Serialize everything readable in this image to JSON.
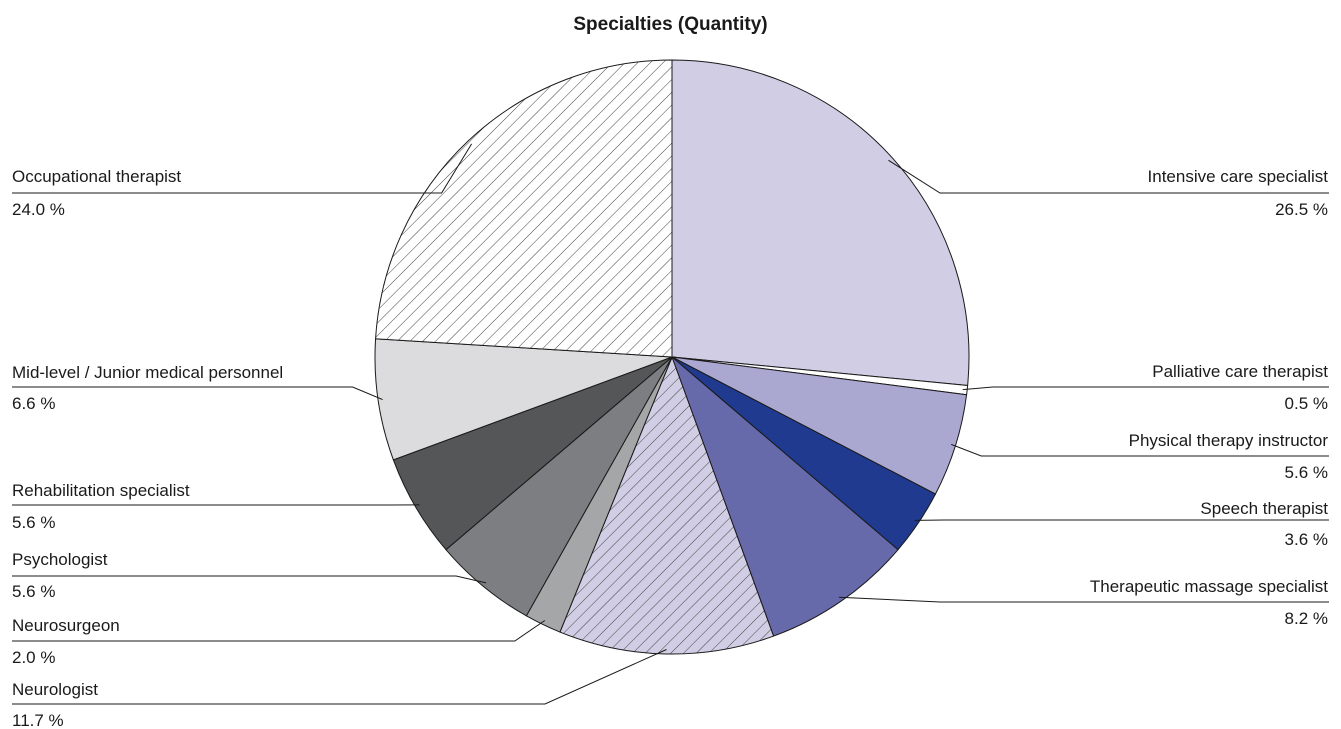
{
  "chart_data": {
    "type": "pie",
    "title": "Specialties (Quantity)",
    "slices": [
      {
        "label": "Intensive care specialist",
        "value": 26.5,
        "value_label": "26.5 %",
        "color": "#d0cde4",
        "pattern": "solid"
      },
      {
        "label": "Palliative care therapist",
        "value": 0.5,
        "value_label": "0.5 %",
        "color": "#ffffff",
        "pattern": "solid"
      },
      {
        "label": "Physical therapy instructor",
        "value": 5.6,
        "value_label": "5.6 %",
        "color": "#aaa8d0",
        "pattern": "solid"
      },
      {
        "label": "Speech therapist",
        "value": 3.6,
        "value_label": "3.6 %",
        "color": "#1f3a8f",
        "pattern": "solid"
      },
      {
        "label": "Therapeutic massage specialist",
        "value": 8.2,
        "value_label": "8.2 %",
        "color": "#676aaa",
        "pattern": "solid"
      },
      {
        "label": "Neurologist",
        "value": 11.7,
        "value_label": "11.7 %",
        "color": "#d0cde4",
        "pattern": "hatch"
      },
      {
        "label": "Neurosurgeon",
        "value": 2.0,
        "value_label": "2.0 %",
        "color": "#a5a6a8",
        "pattern": "solid"
      },
      {
        "label": "Psychologist",
        "value": 5.6,
        "value_label": "5.6 %",
        "color": "#7d7e82",
        "pattern": "solid"
      },
      {
        "label": "Rehabilitation specialist",
        "value": 5.6,
        "value_label": "5.6 %",
        "color": "#555658",
        "pattern": "solid"
      },
      {
        "label": "Mid-level / Junior medical personnel",
        "value": 6.6,
        "value_label": "6.6 %",
        "color": "#dcdcde",
        "pattern": "solid"
      },
      {
        "label": "Occupational therapist",
        "value": 24.0,
        "value_label": "24.0 %",
        "color": "#ffffff",
        "pattern": "hatch"
      }
    ]
  }
}
